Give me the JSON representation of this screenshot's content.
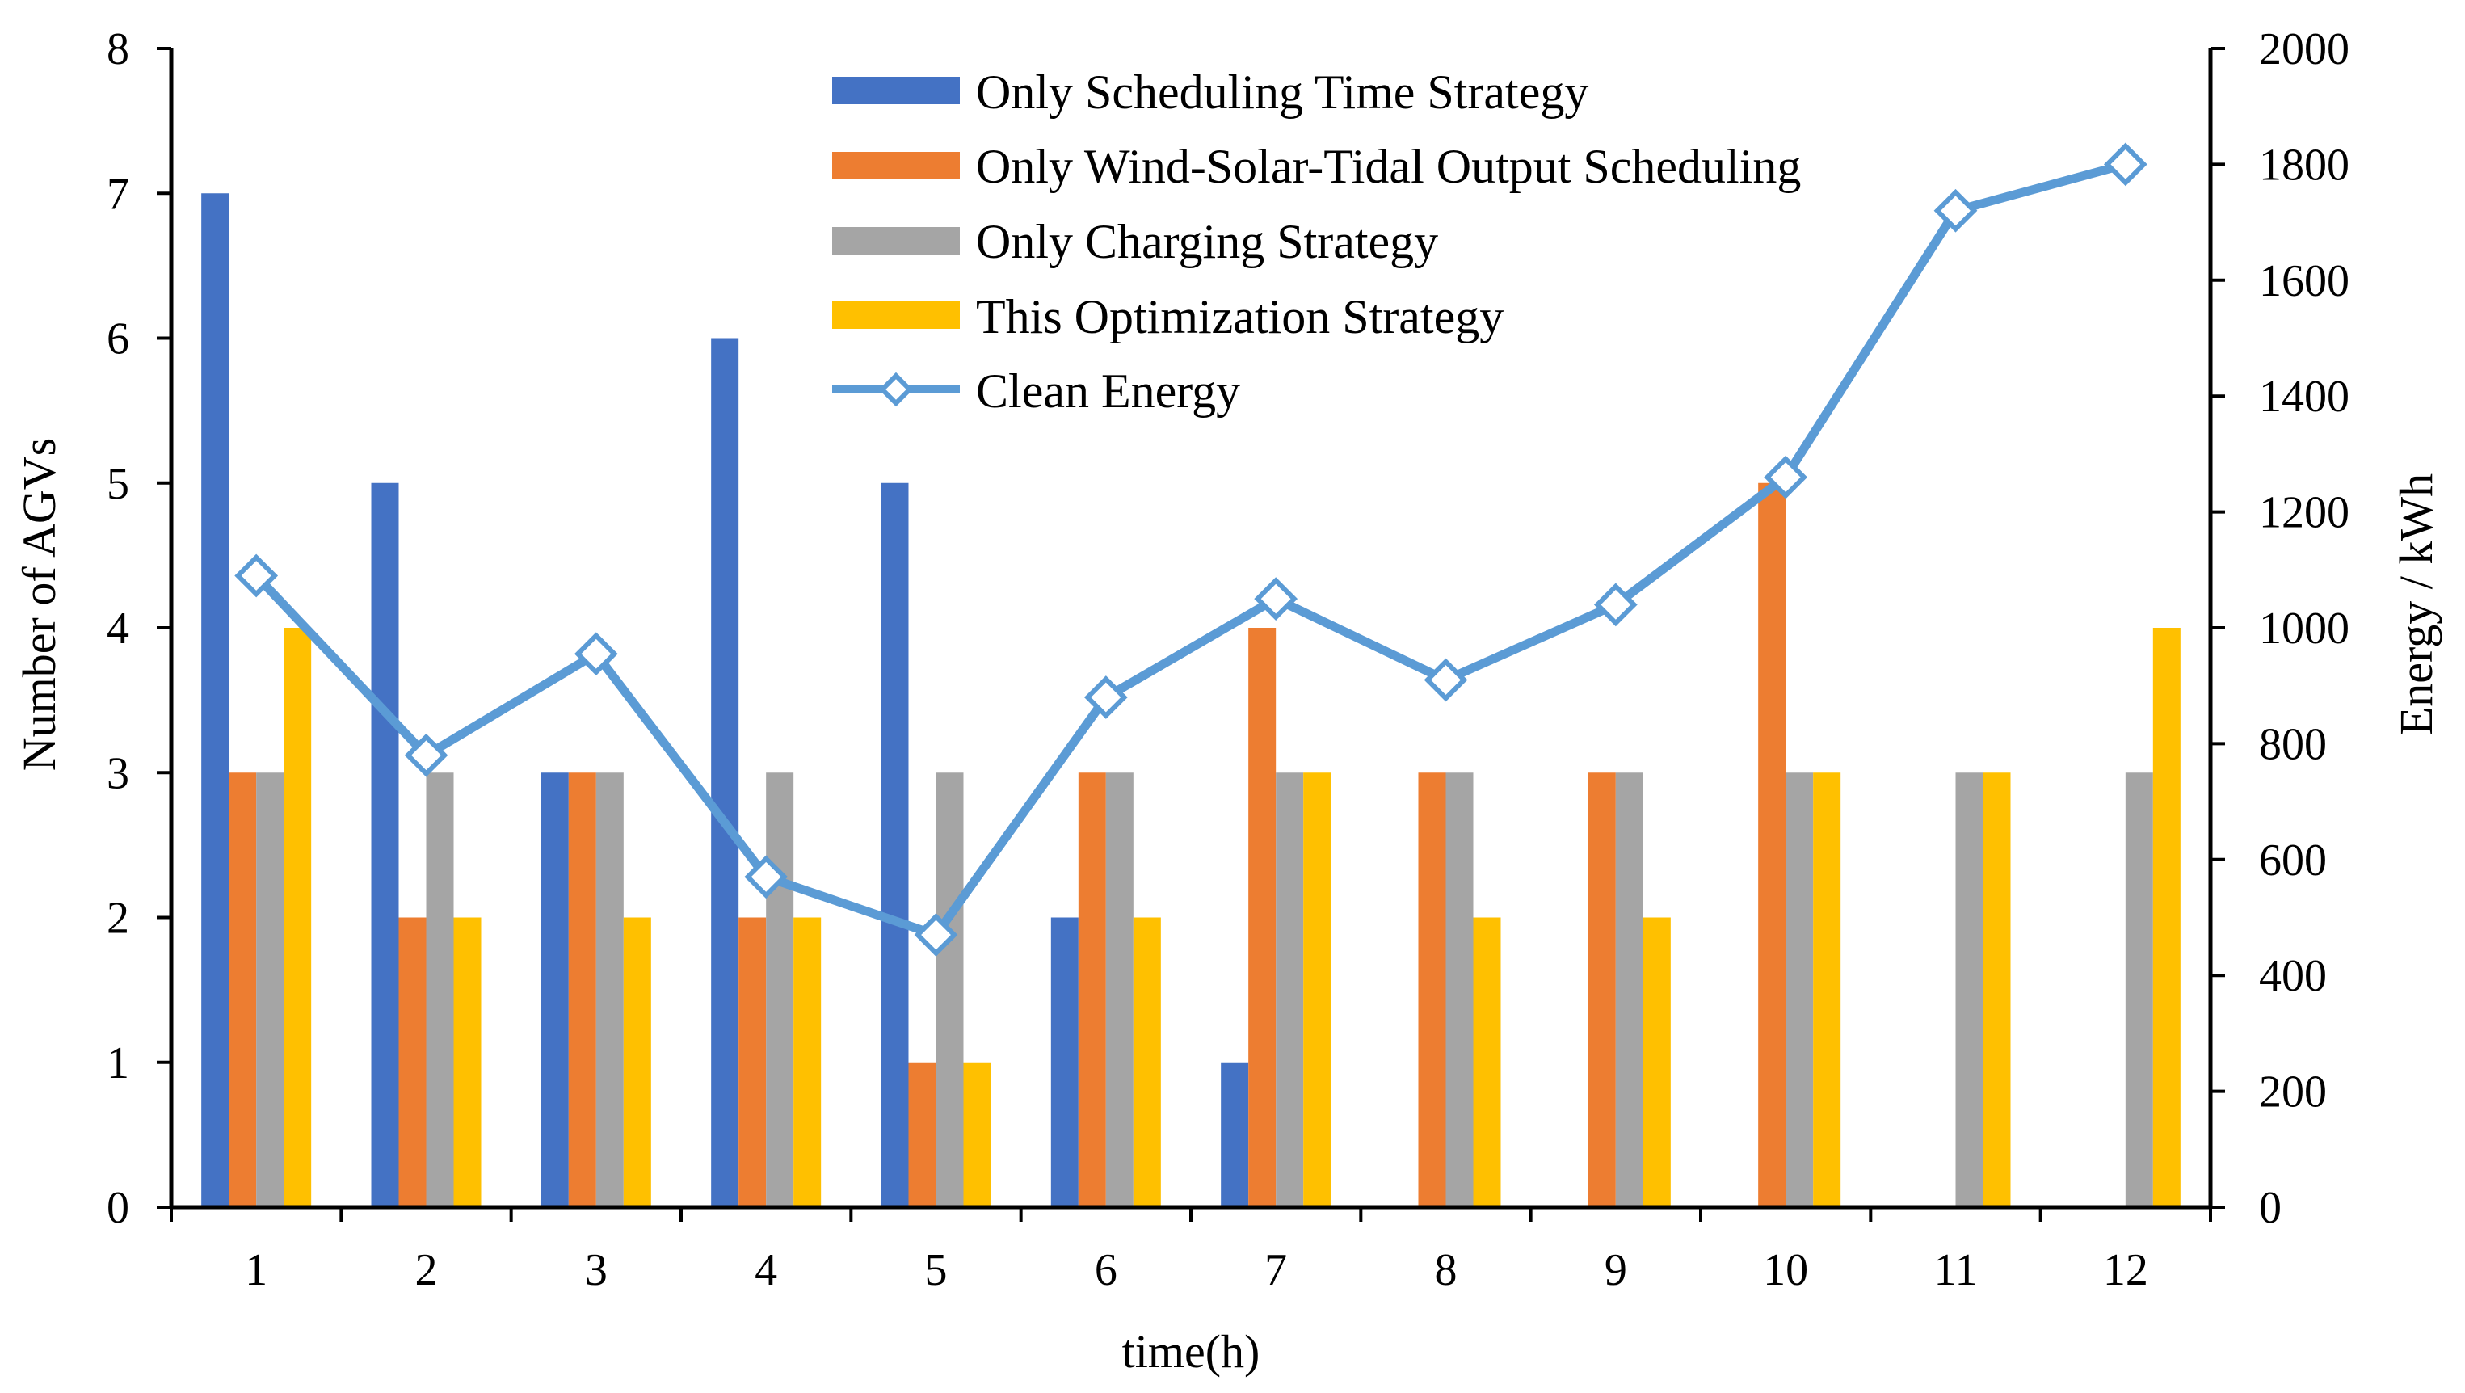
{
  "chart_data": {
    "type": "bar",
    "categories": [
      "1",
      "2",
      "3",
      "4",
      "5",
      "6",
      "7",
      "8",
      "9",
      "10",
      "11",
      "12"
    ],
    "series": [
      {
        "name": "Only Scheduling Time Strategy",
        "color": "#4472C4",
        "values": [
          7,
          5,
          3,
          6,
          5,
          2,
          1,
          0,
          0,
          0,
          0,
          0
        ]
      },
      {
        "name": "Only Wind-Solar-Tidal Output Scheduling",
        "color": "#ED7D31",
        "values": [
          3,
          2,
          3,
          2,
          1,
          3,
          4,
          3,
          3,
          5,
          0,
          0
        ]
      },
      {
        "name": "Only Charging Strategy",
        "color": "#A5A5A5",
        "values": [
          3,
          3,
          3,
          3,
          3,
          3,
          3,
          3,
          3,
          3,
          3,
          3
        ]
      },
      {
        "name": "This Optimization Strategy",
        "color": "#FFC000",
        "values": [
          4,
          2,
          2,
          2,
          1,
          2,
          3,
          2,
          2,
          3,
          3,
          4
        ]
      }
    ],
    "line_series": {
      "name": "Clean Energy",
      "color": "#5B9BD5",
      "axis": "right",
      "values": [
        1090,
        780,
        955,
        570,
        470,
        880,
        1050,
        910,
        1040,
        1260,
        1720,
        1800
      ]
    },
    "xlabel": "time(h)",
    "ylabel": "Number of AGVs",
    "y2label": "Energy / kWh",
    "ylim": [
      0,
      8
    ],
    "y2lim": [
      0,
      2000
    ],
    "yticks": [
      "0",
      "1",
      "2",
      "3",
      "4",
      "5",
      "6",
      "7",
      "8"
    ],
    "y2ticks": [
      "0",
      "200",
      "400",
      "600",
      "800",
      "1000",
      "1200",
      "1400",
      "1600",
      "1800",
      "2000"
    ],
    "legend_position": "top-center",
    "grid": false
  }
}
